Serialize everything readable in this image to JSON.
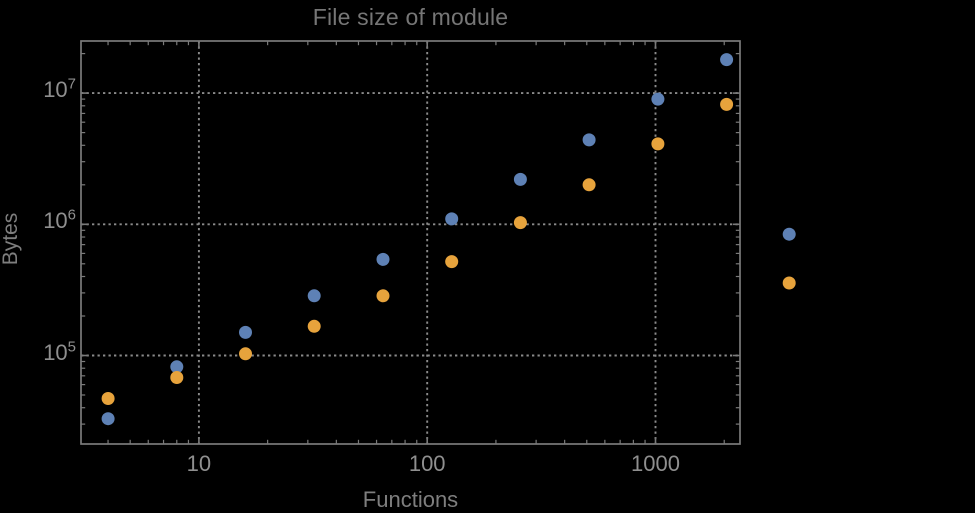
{
  "chart_data": {
    "type": "scatter",
    "title": "File size of module",
    "xlabel": "Functions",
    "ylabel": "Bytes",
    "x_scale": "log",
    "y_scale": "log",
    "xlim": [
      3.1,
      2340
    ],
    "ylim": [
      21000,
      25000000
    ],
    "grid": true,
    "grid_style": "dotted",
    "legend": "none",
    "x_ticks": [
      {
        "value": 10,
        "label": "10"
      },
      {
        "value": 100,
        "label": "100"
      },
      {
        "value": 1000,
        "label": "1000"
      }
    ],
    "y_ticks": [
      {
        "value": 100000,
        "base": "10",
        "exponent": "5"
      },
      {
        "value": 1000000,
        "base": "10",
        "exponent": "6"
      },
      {
        "value": 10000000,
        "base": "10",
        "exponent": "7"
      }
    ],
    "series": [
      {
        "name": "blue-series",
        "color": "#5E81B5",
        "points": [
          [
            4,
            33000
          ],
          [
            8,
            82000
          ],
          [
            16,
            150000
          ],
          [
            32,
            285000
          ],
          [
            64,
            540000
          ],
          [
            128,
            1100000
          ],
          [
            256,
            2200000
          ],
          [
            512,
            4400000
          ],
          [
            1024,
            9000000
          ],
          [
            2048,
            18000000
          ]
        ]
      },
      {
        "name": "orange-series",
        "color": "#E7A33C",
        "points": [
          [
            4,
            47000
          ],
          [
            8,
            68000
          ],
          [
            16,
            103000
          ],
          [
            32,
            167000
          ],
          [
            64,
            285000
          ],
          [
            128,
            520000
          ],
          [
            256,
            1030000
          ],
          [
            512,
            2000000
          ],
          [
            1024,
            4100000
          ],
          [
            2048,
            8200000
          ]
        ]
      }
    ],
    "outside_markers": [
      {
        "color": "#5E81B5",
        "x": 3850,
        "y": 840000
      },
      {
        "color": "#E7A33C",
        "x": 3850,
        "y": 357000
      }
    ]
  },
  "style_colors": {
    "background": "#000000",
    "frame": "#7a7a7a",
    "grid": "#8a8a8a",
    "tick_text": "#8f8f8f",
    "title_text": "#767676",
    "axis_label_text": "#7e7e7e"
  }
}
